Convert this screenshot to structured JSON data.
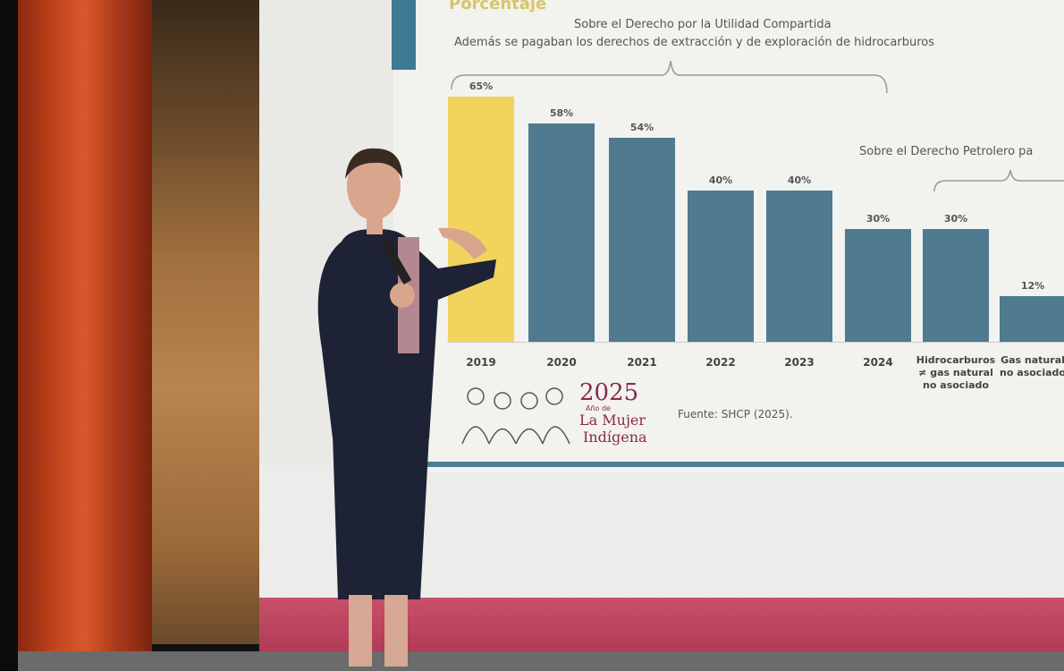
{
  "chart_data": {
    "type": "bar",
    "title": "Porcentaje",
    "annotations": [
      "Sobre el Derecho por la Utilidad Compartida",
      "Además se pagaban los derechos de extracción y de exploración de hidrocarburos",
      "Sobre el Derecho Petrolero pa"
    ],
    "categories": [
      "2019",
      "2020",
      "2021",
      "2022",
      "2023",
      "2024",
      "Hidrocarburos ≠ gas natural no asociado",
      "Gas natural no asociado"
    ],
    "values": [
      65,
      58,
      54,
      40,
      40,
      30,
      30,
      12
    ],
    "value_labels": [
      "65%",
      "58%",
      "54%",
      "40%",
      "40%",
      "30%",
      "30%",
      "12%"
    ],
    "colors": [
      "#f2d45c",
      "#4f7a8f",
      "#4f7a8f",
      "#4f7a8f",
      "#4f7a8f",
      "#4f7a8f",
      "#4f7a8f",
      "#4f7a8f"
    ],
    "ylim": [
      0,
      65
    ],
    "source": "Fuente: SHCP (2025).",
    "grid": false
  },
  "logo": {
    "year": "2025",
    "small": "Año de",
    "name1": "La Mujer",
    "name2": "Indígena"
  }
}
